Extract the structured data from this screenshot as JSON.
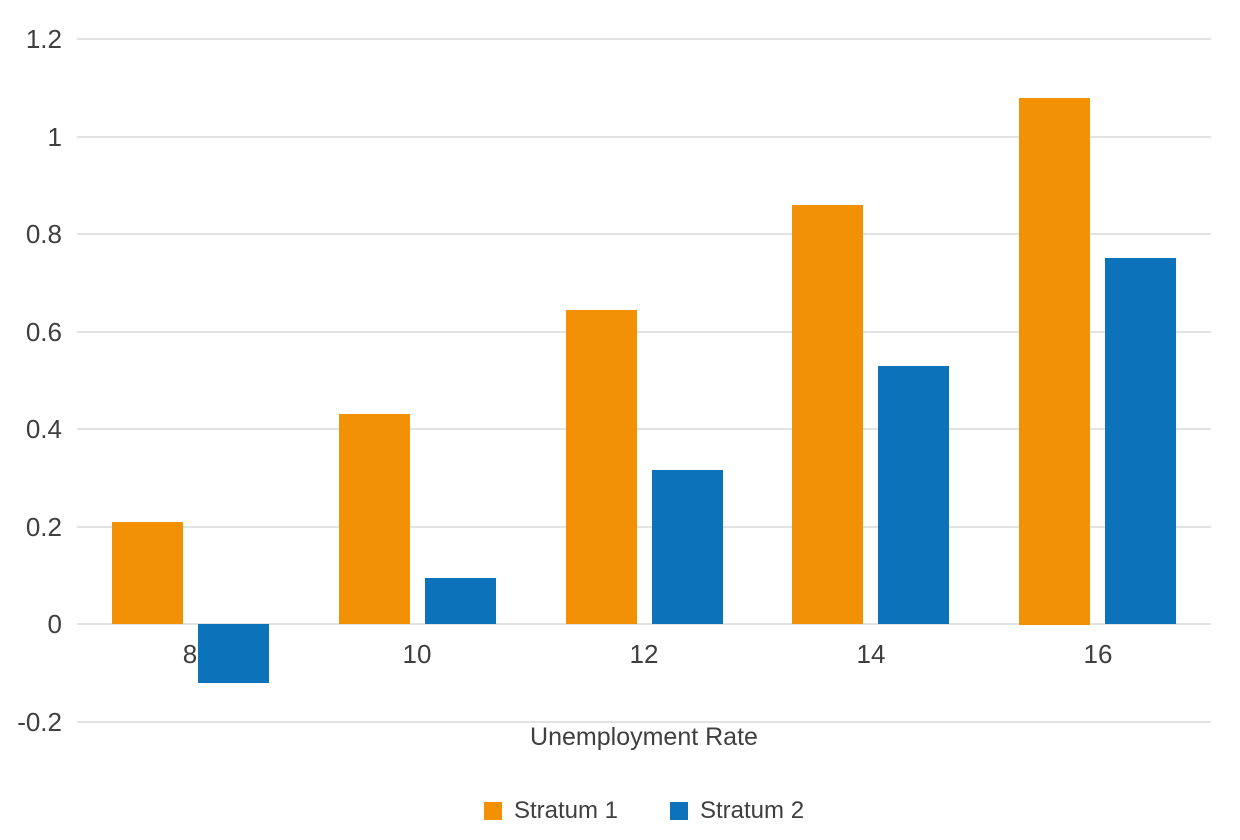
{
  "chart_data": {
    "type": "bar",
    "title": "",
    "xlabel": "Unemployment Rate",
    "ylabel": "",
    "categories": [
      "8",
      "10",
      "12",
      "14",
      "16"
    ],
    "series": [
      {
        "name": "Stratum 1",
        "color": "#F29105",
        "values": [
          0.21,
          0.43,
          0.645,
          0.86,
          1.08
        ]
      },
      {
        "name": "Stratum 2",
        "color": "#0C72B9",
        "values": [
          -0.12,
          0.095,
          0.315,
          0.53,
          0.75
        ]
      }
    ],
    "ylim": [
      -0.2,
      1.2
    ],
    "ytick_values": [
      1.2,
      1.0,
      0.8,
      0.6,
      0.4,
      0.2,
      0,
      -0.2
    ],
    "ytick_labels": [
      "1.2",
      "1",
      "0.8",
      "0.6",
      "0.4",
      "0.2",
      "0",
      "-0.2"
    ],
    "grid": true,
    "legend_position": "bottom",
    "colors": {
      "background": "#FFFFFF",
      "gridline": "#E2E2E2",
      "text": "#3F3F3F"
    }
  }
}
